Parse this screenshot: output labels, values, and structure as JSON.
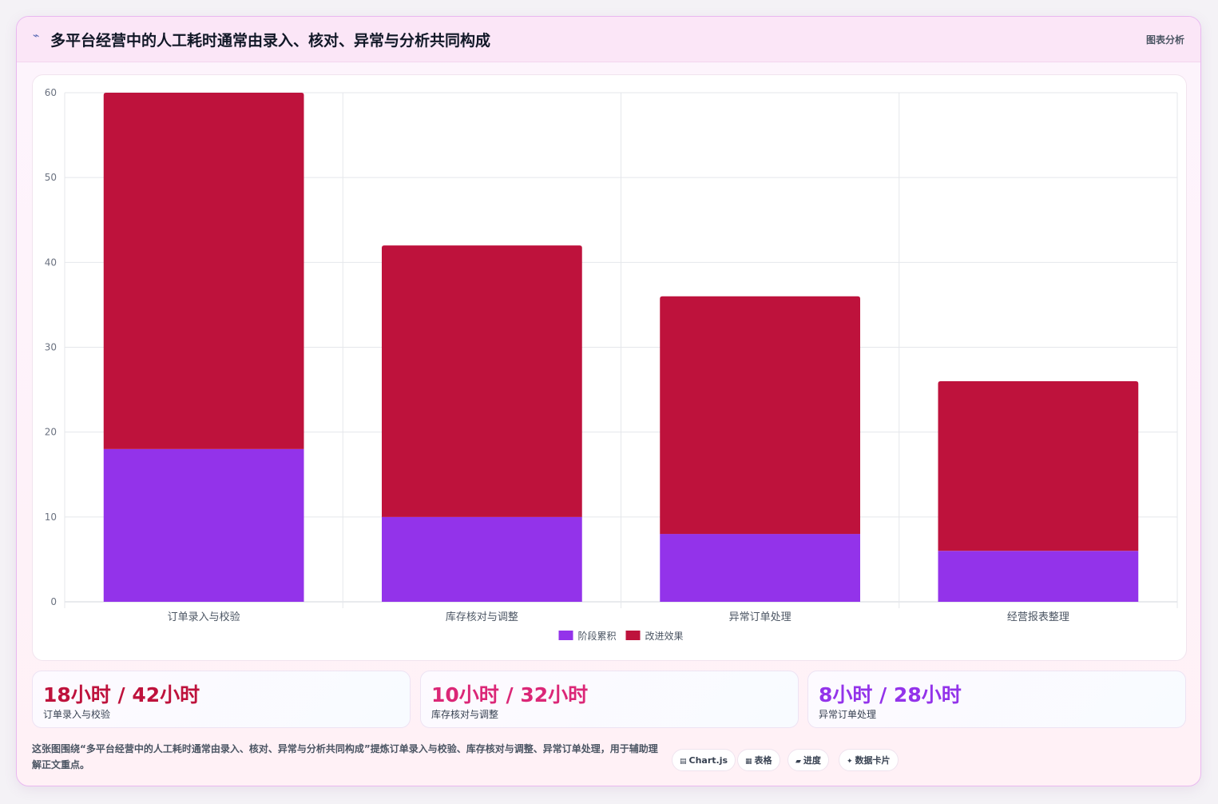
{
  "header": {
    "icon": "trend-line-icon",
    "title": "多平台经营中的人工耗时通常由录入、核对、异常与分析共同构成",
    "link_label": "图表分析"
  },
  "chart_data": {
    "type": "bar",
    "stacked": true,
    "categories": [
      "订单录入与校验",
      "库存核对与调整",
      "异常订单处理",
      "经营报表整理"
    ],
    "series": [
      {
        "name": "阶段累积",
        "values": [
          18,
          10,
          8,
          6
        ],
        "color": "#9333ea"
      },
      {
        "name": "改进效果",
        "values": [
          42,
          32,
          28,
          20
        ],
        "color": "#be123c"
      }
    ],
    "ylim": [
      0,
      60
    ],
    "yticks": [
      0,
      10,
      20,
      30,
      40,
      50,
      60
    ],
    "grid": true,
    "legend": "bottom-center"
  },
  "stats": [
    {
      "value": "18小时 / 42小时",
      "label": "订单录入与校验",
      "color": "#be123c"
    },
    {
      "value": "10小时 / 32小时",
      "label": "库存核对与调整",
      "color": "#db2777"
    },
    {
      "value": "8小时 / 28小时",
      "label": "异常订单处理",
      "color": "#9333ea"
    }
  ],
  "description": "这张图围绕“多平台经营中的人工耗时通常由录入、核对、异常与分析共同构成”提炼订单录入与校验、库存核对与调整、异常订单处理，用于辅助理解正文重点。",
  "tags": [
    {
      "icon": "chart-icon",
      "glyph": "▤",
      "label": "Chart.js"
    },
    {
      "icon": "table-icon",
      "glyph": "▦",
      "label": "表格"
    },
    {
      "icon": "progress-icon",
      "glyph": "▰",
      "label": "进度"
    },
    {
      "icon": "sparkle-icon",
      "glyph": "✦",
      "label": "数据卡片"
    }
  ]
}
